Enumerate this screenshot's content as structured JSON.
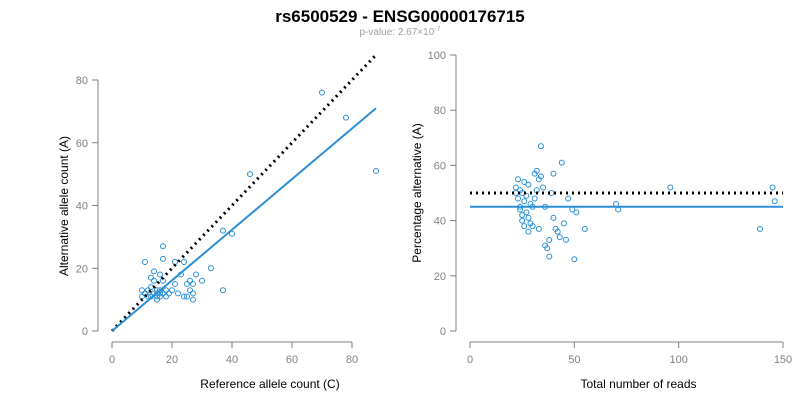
{
  "header": {
    "title": "rs6500529 - ENSG00000176715",
    "pvalue_prefix": "p-value: 2.67×10",
    "pvalue_exp": "-7"
  },
  "colors": {
    "points": "#2a8fd6",
    "fit_line": "#2a8fd6",
    "reference_line": "#000000",
    "axis": "#808080"
  },
  "chart_data": [
    {
      "type": "scatter",
      "xlabel": "Reference allele count (C)",
      "ylabel": "Alternative allele count (A)",
      "xlim": [
        0,
        88
      ],
      "ylim": [
        0,
        80
      ],
      "xticks": [
        0,
        20,
        40,
        60,
        80
      ],
      "yticks": [
        0,
        20,
        40,
        60,
        80
      ],
      "grid": false,
      "points": [
        [
          10,
          11
        ],
        [
          10,
          13
        ],
        [
          11,
          12
        ],
        [
          11,
          22
        ],
        [
          12,
          11
        ],
        [
          12,
          13
        ],
        [
          13,
          11
        ],
        [
          13,
          14
        ],
        [
          13,
          17
        ],
        [
          14,
          12
        ],
        [
          14,
          16
        ],
        [
          14,
          19
        ],
        [
          15,
          10
        ],
        [
          15,
          11
        ],
        [
          15,
          12
        ],
        [
          15,
          13
        ],
        [
          16,
          11
        ],
        [
          16,
          12
        ],
        [
          16,
          13
        ],
        [
          16,
          18
        ],
        [
          17,
          12
        ],
        [
          17,
          16
        ],
        [
          17,
          23
        ],
        [
          17,
          27
        ],
        [
          18,
          11
        ],
        [
          18,
          13
        ],
        [
          19,
          12
        ],
        [
          20,
          13
        ],
        [
          21,
          15
        ],
        [
          21,
          22
        ],
        [
          22,
          12
        ],
        [
          23,
          18
        ],
        [
          24,
          11
        ],
        [
          24,
          22
        ],
        [
          25,
          11
        ],
        [
          25,
          15
        ],
        [
          26,
          13
        ],
        [
          26,
          16
        ],
        [
          27,
          10
        ],
        [
          27,
          12
        ],
        [
          27,
          15
        ],
        [
          28,
          18
        ],
        [
          30,
          16
        ],
        [
          33,
          20
        ],
        [
          37,
          13
        ],
        [
          37,
          32
        ],
        [
          40,
          31
        ],
        [
          46,
          50
        ],
        [
          70,
          76
        ],
        [
          78,
          68
        ],
        [
          88,
          51
        ]
      ],
      "reference_line": {
        "style": "dotted",
        "from": [
          0,
          0
        ],
        "to": [
          88,
          88
        ]
      },
      "fit_line": {
        "style": "solid",
        "from": [
          0,
          0
        ],
        "to": [
          88,
          71
        ]
      }
    },
    {
      "type": "scatter",
      "xlabel": "Total number of reads",
      "ylabel": "Percentage alternative (A)",
      "xlim": [
        0,
        150
      ],
      "ylim": [
        0,
        100
      ],
      "xticks": [
        0,
        50,
        100,
        150
      ],
      "yticks": [
        0,
        20,
        40,
        60,
        80,
        100
      ],
      "grid": false,
      "points": [
        [
          22,
          50
        ],
        [
          22,
          52
        ],
        [
          23,
          48
        ],
        [
          23,
          55
        ],
        [
          24,
          45
        ],
        [
          24,
          51
        ],
        [
          24,
          44
        ],
        [
          25,
          50
        ],
        [
          25,
          42
        ],
        [
          25,
          40
        ],
        [
          26,
          47
        ],
        [
          26,
          54
        ],
        [
          26,
          38
        ],
        [
          27,
          49
        ],
        [
          27,
          43
        ],
        [
          28,
          53
        ],
        [
          28,
          41
        ],
        [
          28,
          36
        ],
        [
          29,
          46
        ],
        [
          29,
          39
        ],
        [
          30,
          45
        ],
        [
          30,
          38
        ],
        [
          31,
          48
        ],
        [
          31,
          57
        ],
        [
          32,
          58
        ],
        [
          32,
          51
        ],
        [
          33,
          55
        ],
        [
          33,
          37
        ],
        [
          34,
          67
        ],
        [
          34,
          56
        ],
        [
          35,
          52
        ],
        [
          36,
          31
        ],
        [
          36,
          45
        ],
        [
          37,
          30
        ],
        [
          38,
          27
        ],
        [
          38,
          33
        ],
        [
          39,
          50
        ],
        [
          40,
          41
        ],
        [
          40,
          57
        ],
        [
          41,
          37
        ],
        [
          42,
          36
        ],
        [
          43,
          34
        ],
        [
          44,
          61
        ],
        [
          45,
          39
        ],
        [
          46,
          33
        ],
        [
          47,
          48
        ],
        [
          49,
          44
        ],
        [
          50,
          26
        ],
        [
          51,
          43
        ],
        [
          55,
          37
        ],
        [
          70,
          46
        ],
        [
          71,
          44
        ],
        [
          96,
          52
        ],
        [
          139,
          37
        ],
        [
          145,
          52
        ],
        [
          146,
          47
        ]
      ],
      "reference_line": {
        "style": "dotted",
        "from": [
          0,
          50
        ],
        "to": [
          150,
          50
        ]
      },
      "fit_line": {
        "style": "solid",
        "from": [
          0,
          45
        ],
        "to": [
          150,
          45
        ]
      }
    }
  ]
}
